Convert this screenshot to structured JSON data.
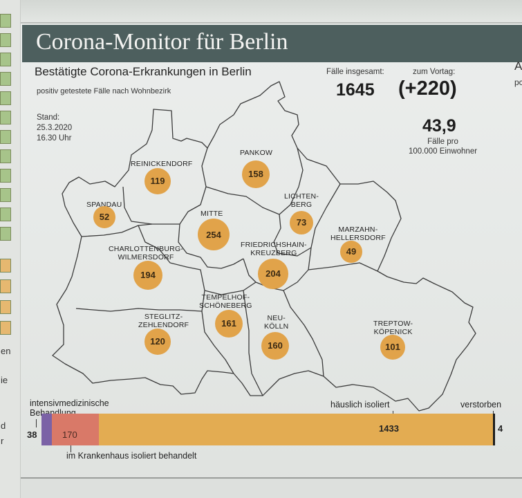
{
  "header": {
    "title": "Corona-Monitor für Berlin"
  },
  "graphic": {
    "subtitle": "Bestätigte Corona-Erkrankungen in Berlin",
    "subnote": "positiv getestete Fälle nach Wohnbezirk",
    "stand_label": "Stand:",
    "stand_date": "25.3.2020",
    "stand_time": "16.30 Uhr"
  },
  "stats": {
    "total_label": "Fälle insgesamt:",
    "total_value": "1645",
    "prev_label": "zum Vortag:",
    "prev_value": "(+220)",
    "per100k_value": "43,9",
    "per100k_line1": "Fälle pro",
    "per100k_line2": "100.000 Einwohner"
  },
  "districts": [
    {
      "name": "REINICKENDORF",
      "line2": "",
      "value": "119"
    },
    {
      "name": "PANKOW",
      "line2": "",
      "value": "158"
    },
    {
      "name": "SPANDAU",
      "line2": "",
      "value": "52"
    },
    {
      "name": "MITTE",
      "line2": "",
      "value": "254"
    },
    {
      "name": "LICHTEN-",
      "line2": "BERG",
      "value": "73"
    },
    {
      "name": "MARZAHN-",
      "line2": "HELLERSDORF",
      "value": "49"
    },
    {
      "name": "CHARLOTTENBURG-",
      "line2": "WILMERSDORF",
      "value": "194"
    },
    {
      "name": "FRIEDRICHSHAIN-",
      "line2": "KREUZBERG",
      "value": "204"
    },
    {
      "name": "TEMPELHOF-",
      "line2": "SCHÖNEBERG",
      "value": "161"
    },
    {
      "name": "STEGLITZ-",
      "line2": "ZEHLENDORF",
      "value": "120"
    },
    {
      "name": "NEU-",
      "line2": "KÖLLN",
      "value": "160"
    },
    {
      "name": "TREPTOW-",
      "line2": "KÖPENICK",
      "value": "101"
    }
  ],
  "breakdown": {
    "icu_label_1": "intensivmedizinische",
    "icu_label_2": "Behandlung",
    "icu_value": "38",
    "hospital_label": "im Krankenhaus isoliert behandelt",
    "hospital_value": "170",
    "home_label": "häuslich isoliert",
    "home_value": "1433",
    "dead_label": "verstorben",
    "dead_value": "4",
    "values": [
      38,
      170,
      1433,
      4
    ],
    "colors": [
      "#7b62a6",
      "#d97968",
      "#e3ac52",
      "#1d1d1d"
    ]
  },
  "edge_text": {
    "right_1": "A",
    "right_2": "pc",
    "left_1": "en",
    "left_2": "ie",
    "left_3": "d",
    "left_4": "r"
  },
  "colors": {
    "band": "#4d5f5e",
    "bubble": "#e1a34a",
    "paper": "#e8eae8"
  }
}
